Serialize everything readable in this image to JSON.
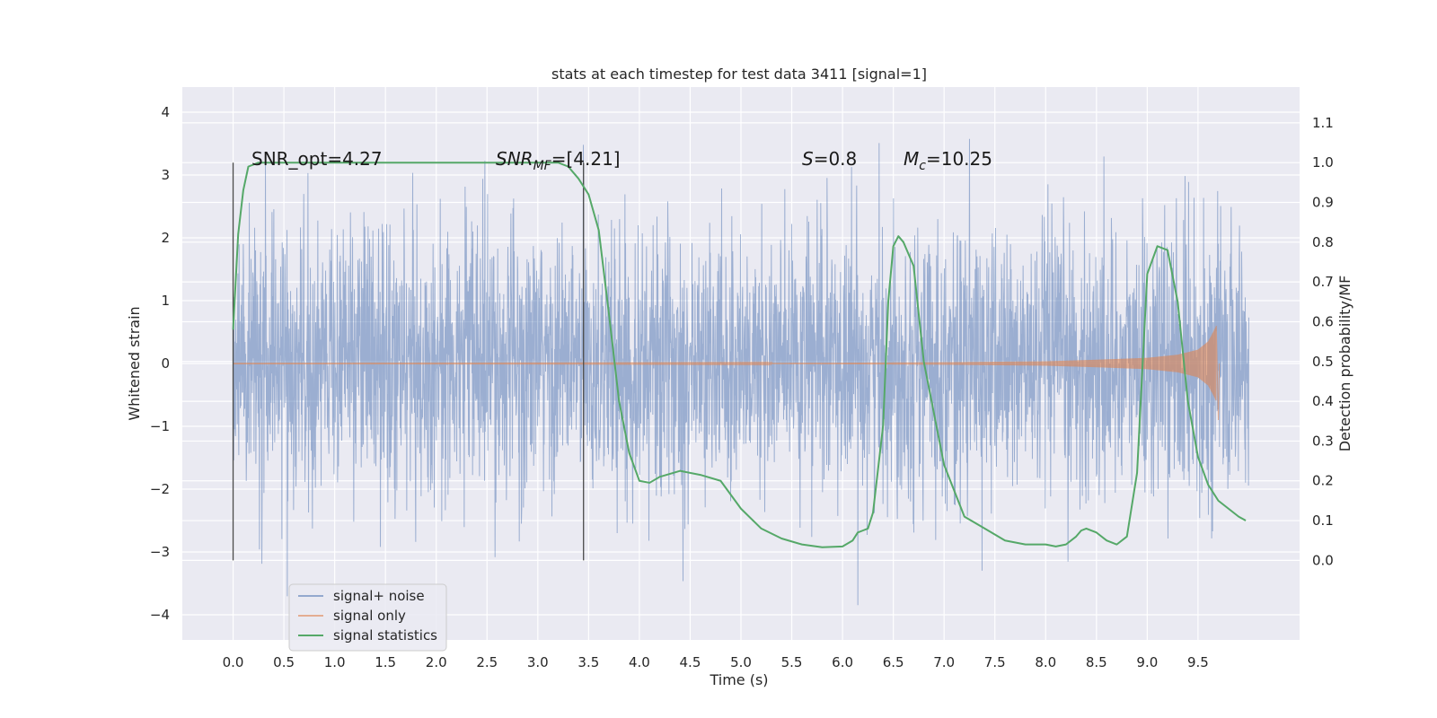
{
  "chart_data": {
    "type": "line",
    "title": "stats at each timestep for test data 3411 [signal=1]",
    "xlabel": "Time (s)",
    "ylabel_left": "Whitened strain",
    "ylabel_right": "Detection probability/MF",
    "xlim": [
      -0.5,
      10.5
    ],
    "ylim_left": [
      -4.4,
      4.4
    ],
    "ylim_right": [
      -0.2,
      1.19
    ],
    "x_ticks": [
      "0.0",
      "0.5",
      "1.0",
      "1.5",
      "2.0",
      "2.5",
      "3.0",
      "3.5",
      "4.0",
      "4.5",
      "5.0",
      "5.5",
      "6.0",
      "6.5",
      "7.0",
      "7.5",
      "8.0",
      "8.5",
      "9.0",
      "9.5"
    ],
    "y_left_ticks": [
      "4",
      "3",
      "2",
      "1",
      "0",
      "−1",
      "−2",
      "−3",
      "−4"
    ],
    "y_right_ticks": [
      "1.1",
      "1.0",
      "0.9",
      "0.8",
      "0.7",
      "0.6",
      "0.5",
      "0.4",
      "0.3",
      "0.2",
      "0.1",
      "0.0"
    ],
    "grid": true,
    "legend_position": "lower-left",
    "annotations": [
      {
        "text": "SNR_opt=4.27"
      },
      {
        "text_italic": "SNR",
        "sub": "MF",
        "text_after": "=[4.21]"
      },
      {
        "text_italic": "S",
        "text_after": "=0.8"
      },
      {
        "text_italic": "M",
        "sub": "c",
        "text_after": "=10.25"
      }
    ],
    "vertical_markers_x": [
      0.0,
      3.45
    ],
    "series": [
      {
        "name": "signal+ noise",
        "axis": "left",
        "color": "#4c72b0",
        "x_range": [
          0.0,
          10.0
        ],
        "amplitude_envelope_left": [
          -4.0,
          4.0
        ]
      },
      {
        "name": "signal only",
        "axis": "left",
        "color": "#dd8452",
        "x": [
          0.0,
          3.0,
          5.0,
          6.0,
          7.0,
          8.0,
          8.5,
          9.0,
          9.3,
          9.5,
          9.6,
          9.65,
          9.68
        ],
        "envelope": [
          0.003,
          0.005,
          0.008,
          0.012,
          0.02,
          0.035,
          0.06,
          0.09,
          0.14,
          0.22,
          0.35,
          0.5,
          0.6
        ]
      },
      {
        "name": "signal statistics",
        "axis": "right",
        "color": "#55a868",
        "x": [
          0.0,
          0.05,
          0.1,
          0.15,
          0.25,
          0.5,
          1.0,
          1.5,
          2.0,
          2.5,
          3.0,
          3.2,
          3.3,
          3.4,
          3.5,
          3.6,
          3.7,
          3.8,
          3.9,
          4.0,
          4.1,
          4.2,
          4.4,
          4.6,
          4.8,
          5.0,
          5.2,
          5.4,
          5.6,
          5.8,
          6.0,
          6.1,
          6.15,
          6.2,
          6.25,
          6.3,
          6.4,
          6.45,
          6.5,
          6.55,
          6.6,
          6.7,
          6.8,
          7.0,
          7.2,
          7.4,
          7.6,
          7.8,
          8.0,
          8.1,
          8.2,
          8.3,
          8.35,
          8.4,
          8.5,
          8.6,
          8.7,
          8.8,
          8.9,
          9.0,
          9.1,
          9.2,
          9.3,
          9.4,
          9.5,
          9.6,
          9.7,
          9.8,
          9.9,
          9.97
        ],
        "y": [
          0.58,
          0.82,
          0.93,
          0.99,
          1.0,
          1.0,
          1.0,
          1.0,
          1.0,
          1.0,
          1.0,
          1.0,
          0.99,
          0.96,
          0.92,
          0.83,
          0.62,
          0.4,
          0.27,
          0.2,
          0.195,
          0.21,
          0.225,
          0.215,
          0.2,
          0.13,
          0.08,
          0.055,
          0.04,
          0.033,
          0.035,
          0.05,
          0.07,
          0.075,
          0.08,
          0.12,
          0.34,
          0.65,
          0.79,
          0.815,
          0.8,
          0.74,
          0.5,
          0.24,
          0.11,
          0.08,
          0.05,
          0.04,
          0.04,
          0.035,
          0.04,
          0.06,
          0.075,
          0.08,
          0.07,
          0.05,
          0.04,
          0.06,
          0.22,
          0.72,
          0.79,
          0.78,
          0.65,
          0.4,
          0.26,
          0.19,
          0.15,
          0.13,
          0.11,
          0.1
        ]
      }
    ]
  }
}
